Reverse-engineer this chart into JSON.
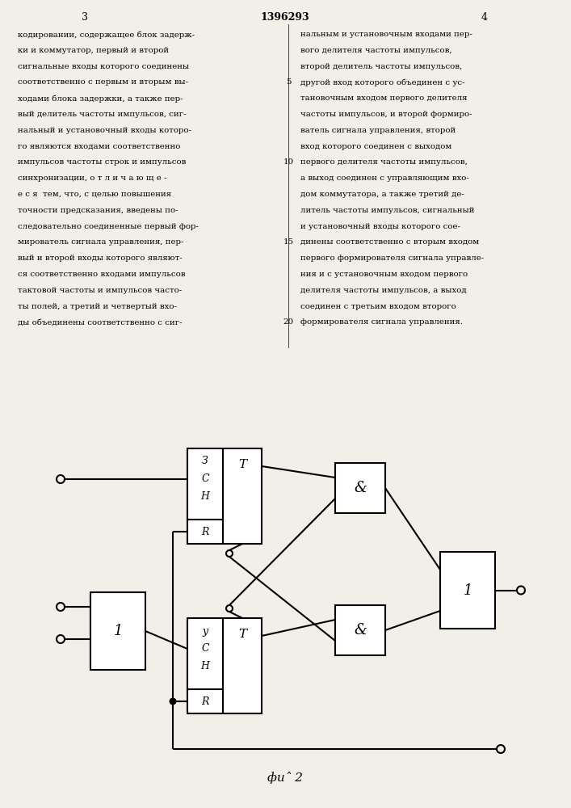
{
  "bg_color": "#f2efe8",
  "title_text": "1396293",
  "page_left": "3",
  "page_right": "4",
  "fig_label": "фиˆ 2",
  "text_left_lines": [
    "кодировании, содержащее блок задерж-",
    "ки и коммутатор, первый и второй",
    "сигнальные входы которого соединены",
    "соответственно с первым и вторым вы-",
    "ходами блока задержки, а также пер-",
    "вый делитель частоты импульсов, сиг-",
    "нальный и установочный входы которо-",
    "го являются входами соответственно",
    "импульсов частоты строк и импульсов",
    "синхронизации, о т л и ч а ю щ е -",
    "е с я  тем, что, с целью повышения",
    "точности предсказания, введены по-",
    "следовательно соединенные первый фор-",
    "мирователь сигнала управления, пер-",
    "вый и второй входы которого являют-",
    "ся соответственно входами импульсов",
    "тактовой частоты и импульсов часто-",
    "ты полей, а третий и четвертый вхо-",
    "ды объединены соответственно с сиг-"
  ],
  "text_right_lines": [
    "нальным и установочным входами пер-",
    "вого делителя частоты импульсов,",
    "второй делитель частоты импульсов,",
    "другой вход которого объединен с ус-",
    "тановочным входом первого делителя",
    "частоты импульсов, и второй формиро-",
    "ватель сигнала управления, второй",
    "вход которого соединен с выходом",
    "первого делителя частоты импульсов,",
    "а выход соединен с управляющим вхо-",
    "дом коммутатора, а также третий де-",
    "литель частоты импульсов, сигнальный",
    "и установочный входы которого сое-",
    "динены соответственно с вторым входом",
    "первого формирователя сигнала управле-",
    "ния и с установочным входом первого",
    "делителя частоты импульсов, а выход",
    "соединен с третьим входом второго",
    "формирователя сигнала управления."
  ],
  "line_number_rows": [
    3,
    8,
    13,
    18
  ],
  "line_number_vals": [
    "5",
    "10",
    "15",
    "20"
  ]
}
